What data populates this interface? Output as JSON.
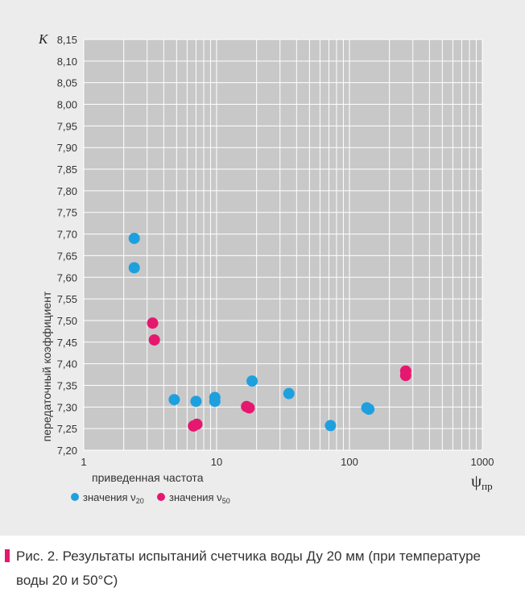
{
  "chart_data": {
    "type": "scatter",
    "xscale": "log",
    "xlim": [
      1,
      1000
    ],
    "ylim": [
      7.2,
      8.15
    ],
    "x_ticks": [
      "1",
      "10",
      "100",
      "1000"
    ],
    "y_ticks": [
      "8,15",
      "8,10",
      "8,05",
      "8,00",
      "7,95",
      "7,90",
      "7,85",
      "7,80",
      "7,75",
      "7,70",
      "7,65",
      "7,60",
      "7,55",
      "7,50",
      "7,45",
      "7,40",
      "7,35",
      "7,30",
      "7,25",
      "7,20"
    ],
    "ylabel_symbol": "K",
    "ylabel": "передаточный коэффициент",
    "xlabel": "приведенная частота",
    "xlabel_symbol": "ψ",
    "xlabel_symbol_sub": "пр",
    "grid": true,
    "legend_position": "bottom-left",
    "series": [
      {
        "name": "значения ν",
        "name_sub": "20",
        "color": "#1ea0df",
        "points": [
          [
            2.4,
            7.69
          ],
          [
            2.4,
            7.622
          ],
          [
            4.8,
            7.317
          ],
          [
            7.0,
            7.313
          ],
          [
            9.7,
            7.322
          ],
          [
            9.7,
            7.313
          ],
          [
            18.5,
            7.36
          ],
          [
            35,
            7.331
          ],
          [
            72,
            7.257
          ],
          [
            135,
            7.298
          ],
          [
            140,
            7.295
          ]
        ]
      },
      {
        "name": "значения ν",
        "name_sub": "50",
        "color": "#e6176f",
        "points": [
          [
            3.3,
            7.494
          ],
          [
            3.4,
            7.455
          ],
          [
            6.7,
            7.256
          ],
          [
            7.1,
            7.26
          ],
          [
            16.8,
            7.301
          ],
          [
            17.6,
            7.298
          ],
          [
            265,
            7.383
          ],
          [
            265,
            7.373
          ]
        ]
      }
    ]
  },
  "caption": {
    "line1": "Рис. 2. Результаты испытаний счетчика воды Ду 20 мм (при температуре",
    "line2": "воды 20 и 50°C)"
  },
  "colors": {
    "plot_background": "#c8c8c8",
    "panel_background": "#ececec",
    "grid": "#ffffff",
    "accent": "#e6176f"
  }
}
